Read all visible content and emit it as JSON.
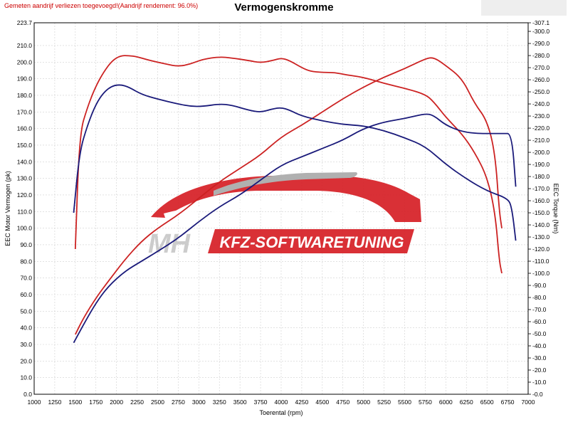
{
  "header": {
    "note": "Gemeten aandrijf verliezen toegevoegd!(Aandrijf rendement: 96.0%)",
    "title": "Vermogenskromme"
  },
  "watermark": {
    "initials": "MH",
    "text": "KFZ-SOFTWARETUNING"
  },
  "chart_data": {
    "type": "line",
    "title": "Vermogenskromme",
    "xlabel": "Toerental (rpm)",
    "ylabel_left": "EEC Motor Vermogen (pk)",
    "ylabel_right": "EEC Torque (Nm)",
    "xlim": [
      1000,
      7000
    ],
    "ylim_left": [
      0,
      223.7
    ],
    "ylim_right": [
      0,
      307.1
    ],
    "grid": true,
    "x_ticks": [
      1000,
      1250,
      1500,
      1750,
      2000,
      2250,
      2500,
      2750,
      3000,
      3250,
      3500,
      3750,
      4000,
      4250,
      4500,
      4750,
      5000,
      5250,
      5500,
      5750,
      6000,
      6250,
      6500,
      6750,
      7000
    ],
    "y_left_ticks": [
      "0.0",
      "10.0",
      "20.0",
      "30.0",
      "40.0",
      "50.0",
      "60.0",
      "70.0",
      "80.0",
      "90.0",
      "100.0",
      "110.0",
      "120.0",
      "130.0",
      "140.0",
      "150.0",
      "160.0",
      "170.0",
      "180.0",
      "190.0",
      "200.0",
      "210.0",
      "223.7"
    ],
    "y_left_tick_values": [
      0,
      10,
      20,
      30,
      40,
      50,
      60,
      70,
      80,
      90,
      100,
      110,
      120,
      130,
      140,
      150,
      160,
      170,
      180,
      190,
      200,
      210,
      223.7
    ],
    "y_right_ticks": [
      "0.0",
      "10.0",
      "20.0",
      "30.0",
      "40.0",
      "50.0",
      "60.0",
      "70.0",
      "80.0",
      "90.0",
      "100.0",
      "110.0",
      "120.0",
      "130.0",
      "140.0",
      "150.0",
      "160.0",
      "170.0",
      "180.0",
      "190.0",
      "200.0",
      "210.0",
      "220.0",
      "230.0",
      "240.0",
      "250.0",
      "260.0",
      "270.0",
      "280.0",
      "290.0",
      "300.0",
      "307.1"
    ],
    "y_right_tick_values": [
      0,
      10,
      20,
      30,
      40,
      50,
      60,
      70,
      80,
      90,
      100,
      110,
      120,
      130,
      140,
      150,
      160,
      170,
      180,
      190,
      200,
      210,
      220,
      230,
      240,
      250,
      260,
      270,
      280,
      290,
      300,
      307.1
    ],
    "series": [
      {
        "axis": "right",
        "color": "#cc2222",
        "points": [
          [
            1500,
            120
          ],
          [
            1550,
            215
          ],
          [
            1650,
            238
          ],
          [
            1750,
            255
          ],
          [
            1850,
            267
          ],
          [
            1950,
            276
          ],
          [
            2050,
            280
          ],
          [
            2150,
            280
          ],
          [
            2250,
            279
          ],
          [
            2400,
            276
          ],
          [
            2600,
            273
          ],
          [
            2750,
            271
          ],
          [
            2900,
            273
          ],
          [
            3050,
            277
          ],
          [
            3250,
            279
          ],
          [
            3400,
            278
          ],
          [
            3600,
            276
          ],
          [
            3750,
            274
          ],
          [
            3900,
            276
          ],
          [
            4000,
            278
          ],
          [
            4100,
            276
          ],
          [
            4250,
            270
          ],
          [
            4350,
            267
          ],
          [
            4500,
            266
          ],
          [
            4650,
            266
          ],
          [
            4800,
            264
          ],
          [
            5000,
            262
          ],
          [
            5250,
            257
          ],
          [
            5500,
            253
          ],
          [
            5750,
            248
          ],
          [
            5850,
            242
          ],
          [
            6000,
            229
          ],
          [
            6200,
            215
          ],
          [
            6350,
            200
          ],
          [
            6500,
            180
          ],
          [
            6600,
            150
          ],
          [
            6650,
            110
          ],
          [
            6680,
            100
          ]
        ]
      },
      {
        "axis": "left",
        "color": "#cc2222",
        "points": [
          [
            1500,
            36
          ],
          [
            1600,
            46
          ],
          [
            1750,
            58
          ],
          [
            1900,
            68
          ],
          [
            2100,
            81
          ],
          [
            2300,
            92
          ],
          [
            2500,
            100
          ],
          [
            2750,
            108
          ],
          [
            3000,
            118
          ],
          [
            3250,
            128
          ],
          [
            3500,
            136
          ],
          [
            3750,
            144
          ],
          [
            4000,
            155
          ],
          [
            4250,
            162
          ],
          [
            4500,
            170
          ],
          [
            4750,
            178
          ],
          [
            5000,
            185
          ],
          [
            5250,
            191
          ],
          [
            5500,
            196
          ],
          [
            5750,
            202
          ],
          [
            5850,
            203
          ],
          [
            6000,
            198
          ],
          [
            6200,
            190
          ],
          [
            6350,
            175
          ],
          [
            6500,
            165
          ],
          [
            6600,
            145
          ],
          [
            6650,
            110
          ],
          [
            6680,
            100
          ]
        ]
      },
      {
        "axis": "right",
        "color": "#1a1a7a",
        "points": [
          [
            1480,
            150
          ],
          [
            1550,
            200
          ],
          [
            1650,
            223
          ],
          [
            1750,
            240
          ],
          [
            1850,
            250
          ],
          [
            1950,
            255
          ],
          [
            2050,
            256
          ],
          [
            2150,
            254
          ],
          [
            2300,
            248
          ],
          [
            2500,
            244
          ],
          [
            2750,
            240
          ],
          [
            2900,
            238
          ],
          [
            3050,
            238
          ],
          [
            3250,
            240
          ],
          [
            3400,
            239
          ],
          [
            3600,
            235
          ],
          [
            3750,
            233
          ],
          [
            3900,
            236
          ],
          [
            4000,
            237
          ],
          [
            4100,
            235
          ],
          [
            4250,
            230
          ],
          [
            4500,
            226
          ],
          [
            4750,
            223
          ],
          [
            5000,
            222
          ],
          [
            5250,
            218
          ],
          [
            5500,
            212
          ],
          [
            5750,
            205
          ],
          [
            6000,
            190
          ],
          [
            6250,
            178
          ],
          [
            6500,
            168
          ],
          [
            6750,
            162
          ],
          [
            6800,
            155
          ],
          [
            6850,
            127
          ]
        ]
      },
      {
        "axis": "left",
        "color": "#1a1a7a",
        "points": [
          [
            1480,
            31
          ],
          [
            1600,
            42
          ],
          [
            1750,
            55
          ],
          [
            1900,
            65
          ],
          [
            2100,
            74
          ],
          [
            2300,
            80
          ],
          [
            2500,
            86
          ],
          [
            2750,
            94
          ],
          [
            3000,
            104
          ],
          [
            3250,
            113
          ],
          [
            3500,
            120
          ],
          [
            3750,
            129
          ],
          [
            4000,
            138
          ],
          [
            4250,
            143
          ],
          [
            4500,
            148
          ],
          [
            4750,
            153
          ],
          [
            5000,
            160
          ],
          [
            5250,
            164
          ],
          [
            5500,
            166
          ],
          [
            5750,
            169
          ],
          [
            5850,
            168
          ],
          [
            6000,
            162
          ],
          [
            6200,
            158
          ],
          [
            6400,
            157
          ],
          [
            6500,
            157
          ],
          [
            6700,
            157
          ],
          [
            6800,
            157
          ],
          [
            6850,
            125
          ]
        ]
      }
    ]
  }
}
